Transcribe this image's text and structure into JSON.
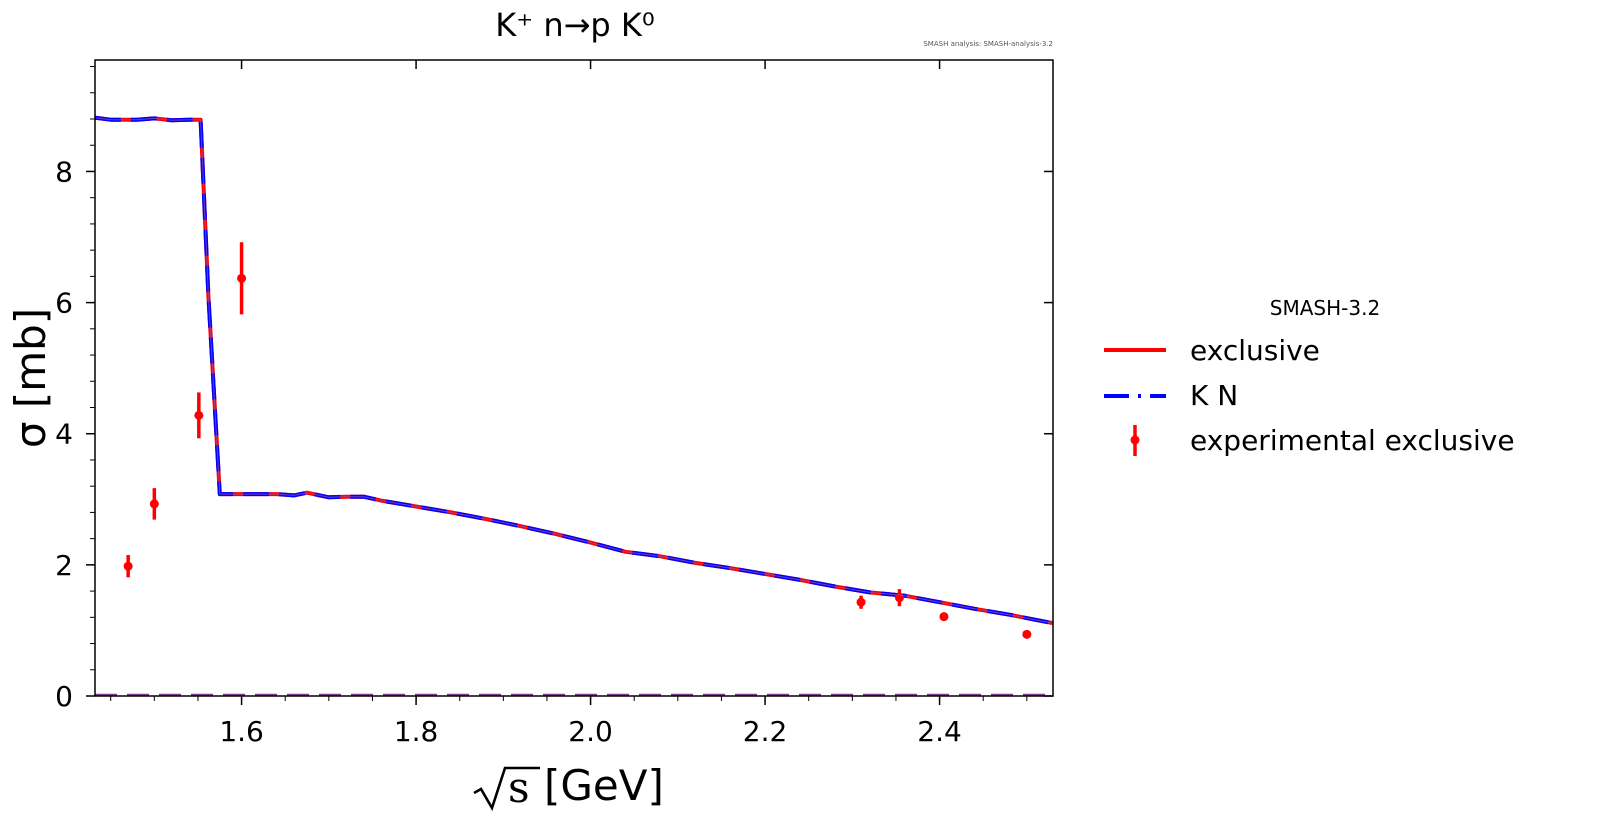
{
  "chart_data": {
    "type": "line",
    "title": "K⁺ n→p K⁰",
    "watermark": "SMASH analysis: SMASH-analysis-3.2",
    "xlabel_root": "s",
    "xlabel_unit": "[GeV]",
    "ylabel": "σ [mb]",
    "xlim": [
      1.432,
      2.53
    ],
    "ylim": [
      0,
      9.7
    ],
    "xticks": [
      1.6,
      1.8,
      2.0,
      2.2,
      2.4
    ],
    "xtick_labels": [
      "1.6",
      "1.8",
      "2.0",
      "2.2",
      "2.4"
    ],
    "yticks": [
      0,
      2,
      4,
      6,
      8
    ],
    "ytick_labels": [
      "0",
      "2",
      "4",
      "6",
      "8"
    ],
    "grid": false,
    "legend": {
      "title": "SMASH-3.2",
      "placement": "outside-right",
      "entries": [
        {
          "label": "exclusive",
          "style": "solid",
          "color": "#ff0000"
        },
        {
          "label": "K N",
          "style": "dashed",
          "color": "#0000ff"
        },
        {
          "label": "experimental exclusive",
          "style": "errorbar",
          "color": "#ff0000"
        }
      ]
    },
    "series": [
      {
        "name": "exclusive",
        "color": "#ff0000",
        "x": [
          1.432,
          1.45,
          1.48,
          1.5,
          1.52,
          1.54,
          1.553,
          1.562,
          1.575,
          1.6,
          1.62,
          1.64,
          1.66,
          1.675,
          1.7,
          1.72,
          1.74,
          1.76,
          1.8,
          1.84,
          1.88,
          1.92,
          1.96,
          2.0,
          2.04,
          2.08,
          2.12,
          2.16,
          2.2,
          2.24,
          2.28,
          2.32,
          2.36,
          2.4,
          2.44,
          2.48,
          2.53
        ],
        "y": [
          8.82,
          8.79,
          8.79,
          8.81,
          8.78,
          8.79,
          8.79,
          6.1,
          3.08,
          3.08,
          3.08,
          3.08,
          3.06,
          3.1,
          3.03,
          3.04,
          3.04,
          2.98,
          2.89,
          2.8,
          2.7,
          2.59,
          2.47,
          2.34,
          2.2,
          2.13,
          2.03,
          1.95,
          1.86,
          1.77,
          1.67,
          1.58,
          1.53,
          1.43,
          1.33,
          1.24,
          1.11
        ]
      },
      {
        "name": "K N",
        "color": "#0000ff",
        "x": [
          1.432,
          1.45,
          1.48,
          1.5,
          1.52,
          1.54,
          1.553,
          1.562,
          1.575,
          1.6,
          1.62,
          1.64,
          1.66,
          1.675,
          1.7,
          1.72,
          1.74,
          1.76,
          1.8,
          1.84,
          1.88,
          1.92,
          1.96,
          2.0,
          2.04,
          2.08,
          2.12,
          2.16,
          2.2,
          2.24,
          2.28,
          2.32,
          2.36,
          2.4,
          2.44,
          2.48,
          2.53
        ],
        "y": [
          8.82,
          8.79,
          8.79,
          8.81,
          8.78,
          8.79,
          8.79,
          6.1,
          3.08,
          3.08,
          3.08,
          3.08,
          3.06,
          3.1,
          3.03,
          3.04,
          3.04,
          2.98,
          2.89,
          2.8,
          2.7,
          2.59,
          2.47,
          2.34,
          2.2,
          2.13,
          2.03,
          1.95,
          1.86,
          1.77,
          1.67,
          1.58,
          1.53,
          1.43,
          1.33,
          1.24,
          1.11
        ]
      },
      {
        "name": "experimental exclusive",
        "color": "#ff0000",
        "type": "errorbar",
        "x": [
          1.47,
          1.5,
          1.551,
          1.6,
          2.31,
          2.354,
          2.405,
          2.5
        ],
        "y": [
          1.98,
          2.93,
          4.28,
          6.37,
          1.43,
          1.5,
          1.21,
          0.94
        ],
        "yerr": [
          0.17,
          0.24,
          0.35,
          0.55,
          0.1,
          0.13,
          0.06,
          0.06
        ]
      }
    ]
  }
}
